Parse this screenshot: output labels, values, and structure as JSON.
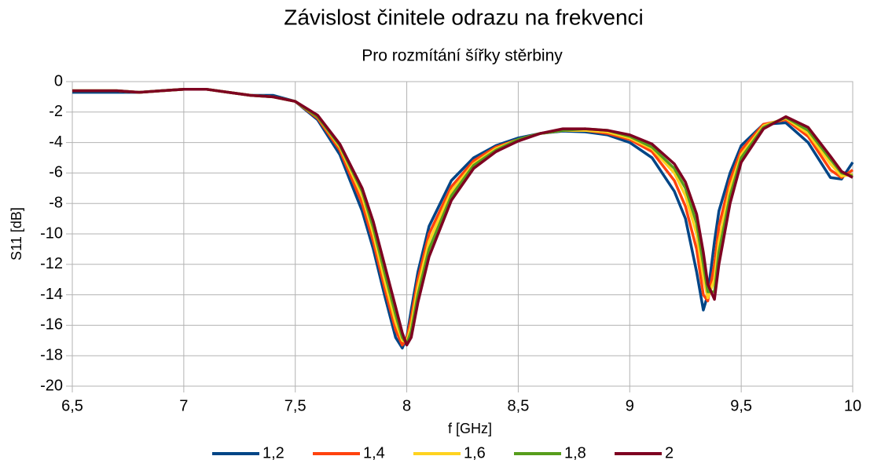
{
  "chart_data": {
    "type": "line",
    "title": "Závislost činitele odrazu na frekvenci",
    "subtitle": "Pro rozmítání šířky stěrbiny",
    "x_label": "f [GHz]",
    "y_label": "S11 [dB]",
    "x": [
      6.5,
      6.6,
      6.7,
      6.8,
      6.9,
      7.0,
      7.1,
      7.2,
      7.3,
      7.4,
      7.5,
      7.6,
      7.7,
      7.8,
      7.85,
      7.9,
      7.95,
      7.98,
      8.0,
      8.02,
      8.05,
      8.1,
      8.2,
      8.3,
      8.4,
      8.5,
      8.6,
      8.7,
      8.8,
      8.9,
      9.0,
      9.1,
      9.2,
      9.25,
      9.3,
      9.33,
      9.35,
      9.38,
      9.4,
      9.45,
      9.5,
      9.6,
      9.7,
      9.8,
      9.9,
      9.95,
      10.0
    ],
    "series": [
      {
        "name": "1,2",
        "color": "#004586",
        "values": [
          -0.7,
          -0.7,
          -0.7,
          -0.7,
          -0.6,
          -0.5,
          -0.5,
          -0.7,
          -0.9,
          -0.9,
          -1.3,
          -2.5,
          -4.8,
          -8.5,
          -11,
          -14,
          -16.8,
          -17.5,
          -16.8,
          -15,
          -12.5,
          -9.5,
          -6.5,
          -5,
          -4.2,
          -3.7,
          -3.4,
          -3.25,
          -3.3,
          -3.5,
          -4,
          -5,
          -7.2,
          -9,
          -12.5,
          -15,
          -14,
          -10.5,
          -8.5,
          -6,
          -4.2,
          -2.8,
          -2.7,
          -4,
          -6.3,
          -6.4,
          -5.3
        ]
      },
      {
        "name": "1,4",
        "color": "#ff420e",
        "values": [
          -0.6,
          -0.6,
          -0.6,
          -0.7,
          -0.6,
          -0.5,
          -0.5,
          -0.7,
          -0.9,
          -1.0,
          -1.3,
          -2.4,
          -4.5,
          -8,
          -10.5,
          -13.5,
          -16.3,
          -17.3,
          -16.9,
          -15.5,
          -13,
          -10,
          -6.9,
          -5.2,
          -4.3,
          -3.8,
          -3.4,
          -3.2,
          -3.2,
          -3.4,
          -3.8,
          -4.6,
          -6.5,
          -8.2,
          -11,
          -14,
          -14.4,
          -12,
          -9.5,
          -6.5,
          -4.5,
          -2.8,
          -2.5,
          -3.6,
          -5.8,
          -6.3,
          -5.8
        ]
      },
      {
        "name": "1,6",
        "color": "#ffd320",
        "values": [
          -0.6,
          -0.6,
          -0.6,
          -0.7,
          -0.6,
          -0.5,
          -0.5,
          -0.7,
          -0.9,
          -1.0,
          -1.3,
          -2.3,
          -4.3,
          -7.5,
          -10,
          -13,
          -15.8,
          -17,
          -17.1,
          -16,
          -13.5,
          -10.5,
          -7.2,
          -5.4,
          -4.4,
          -3.8,
          -3.4,
          -3.2,
          -3.2,
          -3.3,
          -3.7,
          -4.4,
          -6,
          -7.5,
          -10,
          -12.8,
          -14.2,
          -13,
          -10.5,
          -7,
          -4.8,
          -2.9,
          -2.4,
          -3.4,
          -5.4,
          -6.2,
          -6.1
        ]
      },
      {
        "name": "1,8",
        "color": "#579d1c",
        "values": [
          -0.6,
          -0.6,
          -0.6,
          -0.7,
          -0.6,
          -0.5,
          -0.5,
          -0.7,
          -0.9,
          -1.0,
          -1.3,
          -2.3,
          -4.2,
          -7.2,
          -9.6,
          -12.5,
          -15.3,
          -16.8,
          -17.2,
          -16.4,
          -14,
          -11,
          -7.5,
          -5.5,
          -4.5,
          -3.8,
          -3.4,
          -3.2,
          -3.1,
          -3.2,
          -3.6,
          -4.3,
          -5.7,
          -7,
          -9.3,
          -12,
          -13.8,
          -13.8,
          -11.2,
          -7.5,
          -5,
          -3,
          -2.35,
          -3.2,
          -5.1,
          -6,
          -6.2
        ]
      },
      {
        "name": "2",
        "color": "#7e0021",
        "values": [
          -0.6,
          -0.6,
          -0.6,
          -0.7,
          -0.6,
          -0.5,
          -0.5,
          -0.7,
          -0.9,
          -1.0,
          -1.3,
          -2.2,
          -4.1,
          -7,
          -9.2,
          -12,
          -14.8,
          -16.5,
          -17.3,
          -16.8,
          -14.5,
          -11.5,
          -7.8,
          -5.7,
          -4.6,
          -3.9,
          -3.4,
          -3.1,
          -3.1,
          -3.2,
          -3.5,
          -4.1,
          -5.4,
          -6.6,
          -8.7,
          -11.2,
          -13.3,
          -14.3,
          -12,
          -8,
          -5.3,
          -3.1,
          -2.3,
          -3,
          -4.9,
          -5.9,
          -6.3
        ]
      }
    ],
    "xlim": [
      6.5,
      10
    ],
    "xticks": [
      {
        "value": 6.5,
        "label": "6,5"
      },
      7,
      {
        "value": 7.5,
        "label": "7,5"
      },
      8,
      {
        "value": 8.5,
        "label": "8,5"
      },
      9,
      {
        "value": 9.5,
        "label": "9,5"
      },
      10
    ],
    "ylim": [
      -20,
      0
    ],
    "yticks": [
      0,
      -2,
      -4,
      -6,
      -8,
      -10,
      -12,
      -14,
      -16,
      -18,
      -20
    ],
    "grid": true,
    "legend": "bottom"
  }
}
